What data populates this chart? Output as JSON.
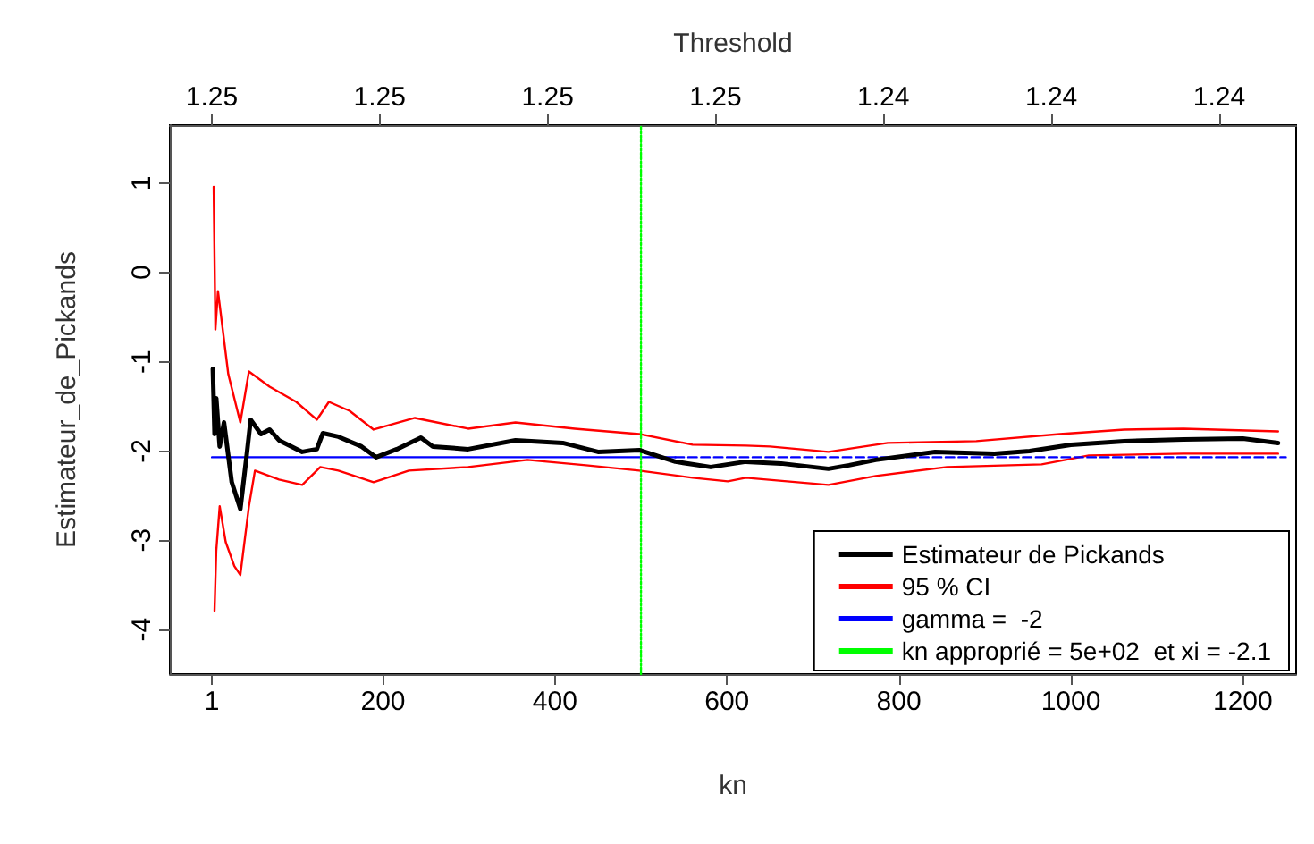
{
  "chart_data": {
    "type": "line",
    "xlabel": "kn",
    "ylabel": "Estimateur_de_Pickands",
    "x2label": "Threshold",
    "xlim": [
      -48,
      1262
    ],
    "xticks": [
      1,
      200,
      400,
      600,
      800,
      1000,
      1200
    ],
    "x2lim": [
      1.2546,
      1.2385
    ],
    "x2ticks": [
      {
        "value": 1.254,
        "label": "1.25"
      },
      {
        "value": 1.2516,
        "label": "1.25"
      },
      {
        "value": 1.2492,
        "label": "1.25"
      },
      {
        "value": 1.2468,
        "label": "1.25"
      },
      {
        "value": 1.2444,
        "label": "1.24"
      },
      {
        "value": 1.242,
        "label": "1.24"
      },
      {
        "value": 1.2396,
        "label": "1.24"
      }
    ],
    "ylim": [
      -4.5,
      1.65
    ],
    "yticks": [
      -4,
      -3,
      -2,
      -1,
      0,
      1
    ],
    "grid": false,
    "legend": "bottom right",
    "marker": "none",
    "series": [
      {
        "name": "Estimateur de Pickands",
        "color": "#000000",
        "line_style": "solid",
        "x": [
          2,
          4,
          6,
          10,
          15,
          24,
          34,
          41,
          46,
          58,
          68,
          79,
          106,
          123,
          130,
          148,
          175,
          192,
          216,
          244,
          258,
          299,
          354,
          409,
          450,
          498,
          540,
          581,
          622,
          663,
          718,
          742,
          773,
          842,
          911,
          952,
          1000,
          1062,
          1131,
          1200,
          1241
        ],
        "values": [
          -1.08,
          -1.81,
          -1.41,
          -1.95,
          -1.68,
          -2.35,
          -2.65,
          -2.08,
          -1.65,
          -1.81,
          -1.76,
          -1.88,
          -2.01,
          -1.98,
          -1.8,
          -1.84,
          -1.95,
          -2.07,
          -1.98,
          -1.85,
          -1.95,
          -1.98,
          -1.88,
          -1.91,
          -2.01,
          -1.99,
          -2.12,
          -2.18,
          -2.12,
          -2.14,
          -2.2,
          -2.16,
          -2.1,
          -2.01,
          -2.03,
          -2.0,
          -1.93,
          -1.89,
          -1.87,
          -1.86,
          -1.91
        ]
      },
      {
        "name": "95 % CI",
        "color": "#ff0000",
        "line_style": "solid",
        "x": [
          3,
          5,
          8,
          20,
          34,
          44,
          68,
          99,
          123,
          137,
          161,
          189,
          237,
          299,
          354,
          423,
          498,
          560,
          622,
          650,
          718,
          787,
          890,
          987,
          1062,
          1131,
          1241
        ],
        "values": [
          0.96,
          -0.64,
          -0.21,
          -1.14,
          -1.68,
          -1.11,
          -1.28,
          -1.45,
          -1.65,
          -1.45,
          -1.55,
          -1.76,
          -1.63,
          -1.75,
          -1.68,
          -1.75,
          -1.81,
          -1.93,
          -1.94,
          -1.95,
          -2.01,
          -1.91,
          -1.89,
          -1.81,
          -1.76,
          -1.75,
          -1.78
        ]
      },
      {
        "color": "#ff0000",
        "line_style": "solid",
        "x": [
          4,
          6,
          10,
          17,
          27,
          34,
          44,
          51,
          79,
          106,
          127,
          148,
          189,
          230,
          299,
          368,
          436,
          498,
          560,
          601,
          622,
          718,
          773,
          856,
          966,
          1021,
          1131,
          1241
        ],
        "values": [
          -3.79,
          -3.12,
          -2.62,
          -3.02,
          -3.29,
          -3.39,
          -2.62,
          -2.22,
          -2.32,
          -2.38,
          -2.18,
          -2.22,
          -2.35,
          -2.22,
          -2.18,
          -2.1,
          -2.16,
          -2.22,
          -2.3,
          -2.34,
          -2.3,
          -2.38,
          -2.28,
          -2.18,
          -2.15,
          -2.05,
          -2.03,
          -2.03
        ]
      },
      {
        "name": "gamma =  -2",
        "color": "#0000ff",
        "line_style": "solid",
        "x": [
          1,
          540
        ],
        "values": [
          -2.07,
          -2.07
        ]
      },
      {
        "color": "#0000ff",
        "line_style": "dashed",
        "x": [
          540,
          1250
        ],
        "values": [
          -2.07,
          -2.07
        ]
      },
      {
        "name": "kn approprié = 5e+02  et xi = -2.1",
        "color": "#00ff00",
        "line_style": "dotted",
        "x": [
          500,
          500
        ],
        "values": [
          -4.5,
          1.65
        ]
      }
    ]
  }
}
